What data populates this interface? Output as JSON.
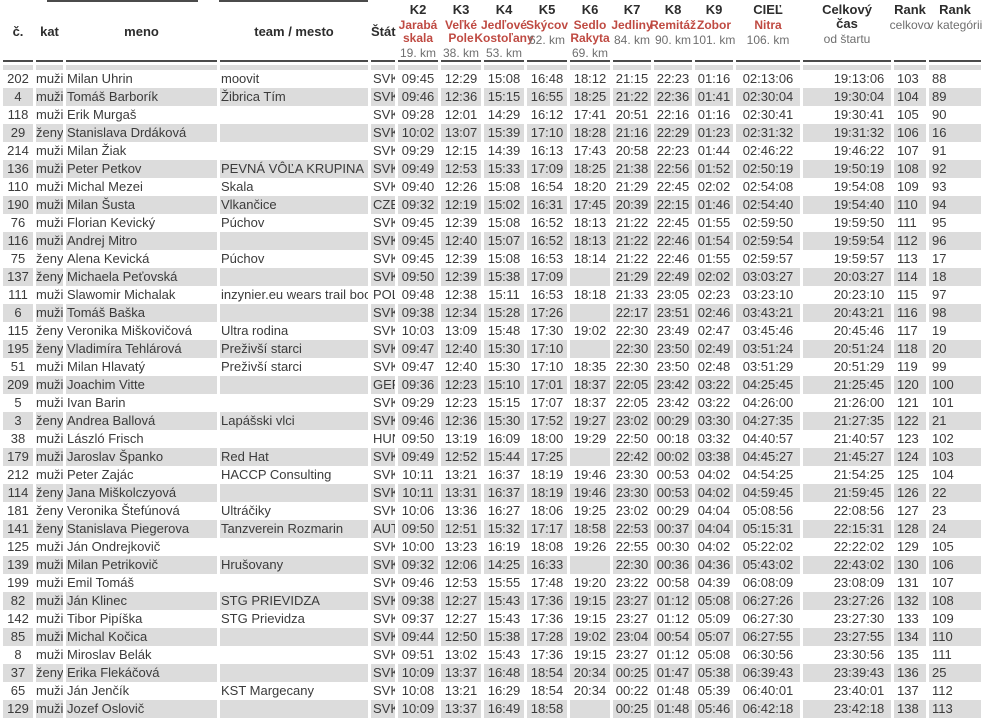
{
  "colors": {
    "checkpoint_name_red": "#bf4a42",
    "muted_gray_text": "#6f6f6f",
    "header_rule": "#4b4b4b",
    "alt_row_bg": "#dcdcdc"
  },
  "table": {
    "columns": [
      {
        "key": "c",
        "label": "č."
      },
      {
        "key": "kat",
        "label": "kat"
      },
      {
        "key": "meno",
        "label": "meno"
      },
      {
        "key": "team",
        "label": "team / mesto"
      },
      {
        "key": "stat",
        "label": "Štát"
      },
      {
        "key": "k2",
        "label": "K2",
        "place": "Jarabá\nskala",
        "km": "19. km"
      },
      {
        "key": "k3",
        "label": "K3",
        "place": "Veľké\nPole",
        "km": "38. km"
      },
      {
        "key": "k4",
        "label": "K4",
        "place": "Jedľové\nKostoľany",
        "km": "53. km"
      },
      {
        "key": "k5",
        "label": "K5",
        "place": "Skýcov",
        "km": "62. km"
      },
      {
        "key": "k6",
        "label": "K6",
        "place": "Sedlo\nRakyta",
        "km": "69. km"
      },
      {
        "key": "k7",
        "label": "K7",
        "place": "Jedliny",
        "km": "84. km"
      },
      {
        "key": "k8",
        "label": "K8",
        "place": "Remitáž",
        "km": "90. km"
      },
      {
        "key": "k9",
        "label": "K9",
        "place": "Zobor",
        "km": "101. km"
      },
      {
        "key": "ciel",
        "label": "CIEĽ",
        "place": "Nitra",
        "km": "106. km"
      },
      {
        "key": "total",
        "label": "Celkový\nčas",
        "sub": "od štartu"
      },
      {
        "key": "rank",
        "label": "Rank",
        "sub": "celkovo"
      },
      {
        "key": "rankkat",
        "label": "Rank",
        "sub": "v kategórii"
      }
    ],
    "rows": [
      [
        "202",
        "muži",
        "Milan Uhrin",
        "moovit",
        "SVK",
        "09:45",
        "12:29",
        "15:08",
        "16:48",
        "18:12",
        "21:15",
        "22:23",
        "01:16",
        "02:13:06",
        "19:13:06",
        "103",
        "88"
      ],
      [
        "4",
        "muži",
        "Tomáš Barborík",
        "Žibrica Tím",
        "SVK",
        "09:46",
        "12:36",
        "15:15",
        "16:55",
        "18:25",
        "21:22",
        "22:36",
        "01:41",
        "02:30:04",
        "19:30:04",
        "104",
        "89"
      ],
      [
        "118",
        "muži",
        "Erik Murgaš",
        "",
        "SVK",
        "09:28",
        "12:01",
        "14:29",
        "16:12",
        "17:41",
        "20:51",
        "22:16",
        "01:16",
        "02:30:41",
        "19:30:41",
        "105",
        "90"
      ],
      [
        "29",
        "ženy",
        "Stanislava Drdáková",
        "",
        "SVK",
        "10:02",
        "13:07",
        "15:39",
        "17:10",
        "18:28",
        "21:16",
        "22:29",
        "01:23",
        "02:31:32",
        "19:31:32",
        "106",
        "16"
      ],
      [
        "214",
        "muži",
        "Milan Žiak",
        "",
        "SVK",
        "09:29",
        "12:15",
        "14:39",
        "16:13",
        "17:43",
        "20:58",
        "22:23",
        "01:44",
        "02:46:22",
        "19:46:22",
        "107",
        "91"
      ],
      [
        "136",
        "muži",
        "Peter Petkov",
        "PEVNÁ VÔĽA KRUPINA",
        "SVK",
        "09:49",
        "12:53",
        "15:33",
        "17:09",
        "18:25",
        "21:38",
        "22:56",
        "01:52",
        "02:50:19",
        "19:50:19",
        "108",
        "92"
      ],
      [
        "110",
        "muži",
        "Michal Mezei",
        "Skala",
        "SVK",
        "09:40",
        "12:26",
        "15:08",
        "16:54",
        "18:20",
        "21:29",
        "22:45",
        "02:02",
        "02:54:08",
        "19:54:08",
        "109",
        "93"
      ],
      [
        "190",
        "muži",
        "Milan Šusta",
        "Vlkančice",
        "CZE",
        "09:32",
        "12:19",
        "15:02",
        "16:31",
        "17:45",
        "20:39",
        "22:15",
        "01:46",
        "02:54:40",
        "19:54:40",
        "110",
        "94"
      ],
      [
        "76",
        "muži",
        "Florian Kevický",
        "Púchov",
        "SVK",
        "09:45",
        "12:39",
        "15:08",
        "16:52",
        "18:13",
        "21:22",
        "22:45",
        "01:55",
        "02:59:50",
        "19:59:50",
        "111",
        "95"
      ],
      [
        "116",
        "muži",
        "Andrej Mitro",
        "",
        "SVK",
        "09:45",
        "12:40",
        "15:07",
        "16:52",
        "18:13",
        "21:22",
        "22:46",
        "01:54",
        "02:59:54",
        "19:59:54",
        "112",
        "96"
      ],
      [
        "75",
        "ženy",
        "Alena Kevická",
        "Púchov",
        "SVK",
        "09:45",
        "12:39",
        "15:08",
        "16:53",
        "18:14",
        "21:22",
        "22:46",
        "01:55",
        "02:59:57",
        "19:59:57",
        "113",
        "17"
      ],
      [
        "137",
        "ženy",
        "Michaela Peťovská",
        "",
        "SVK",
        "09:50",
        "12:39",
        "15:38",
        "17:09",
        "",
        "21:29",
        "22:49",
        "02:02",
        "03:03:27",
        "20:03:27",
        "114",
        "18"
      ],
      [
        "111",
        "muži",
        "Slawomir Michalak",
        "inzynier.eu wears trail boots",
        "POL",
        "09:48",
        "12:38",
        "15:11",
        "16:53",
        "18:18",
        "21:33",
        "23:05",
        "02:23",
        "03:23:10",
        "20:23:10",
        "115",
        "97"
      ],
      [
        "6",
        "muži",
        "Tomáš Baška",
        "",
        "SVK",
        "09:38",
        "12:34",
        "15:28",
        "17:26",
        "",
        "22:17",
        "23:51",
        "02:46",
        "03:43:21",
        "20:43:21",
        "116",
        "98"
      ],
      [
        "115",
        "ženy",
        "Veronika Miškovičová",
        "Ultra rodina",
        "SVK",
        "10:03",
        "13:09",
        "15:48",
        "17:30",
        "19:02",
        "22:30",
        "23:49",
        "02:47",
        "03:45:46",
        "20:45:46",
        "117",
        "19"
      ],
      [
        "195",
        "ženy",
        "Vladimíra Tehlárová",
        "Preživší starci",
        "SVK",
        "09:47",
        "12:40",
        "15:30",
        "17:10",
        "",
        "22:30",
        "23:50",
        "02:49",
        "03:51:24",
        "20:51:24",
        "118",
        "20"
      ],
      [
        "51",
        "muži",
        "Milan Hlavatý",
        "Preživší starci",
        "SVK",
        "09:47",
        "12:40",
        "15:30",
        "17:10",
        "18:35",
        "22:30",
        "23:50",
        "02:48",
        "03:51:29",
        "20:51:29",
        "119",
        "99"
      ],
      [
        "209",
        "muži",
        "Joachim Vitte",
        "",
        "GER",
        "09:36",
        "12:23",
        "15:10",
        "17:01",
        "18:37",
        "22:05",
        "23:42",
        "03:22",
        "04:25:45",
        "21:25:45",
        "120",
        "100"
      ],
      [
        "5",
        "muži",
        "Ivan Barin",
        "",
        "SVK",
        "09:29",
        "12:23",
        "15:15",
        "17:07",
        "18:37",
        "22:05",
        "23:42",
        "03:22",
        "04:26:00",
        "21:26:00",
        "121",
        "101"
      ],
      [
        "3",
        "ženy",
        "Andrea Ballová",
        "Lapášski vlci",
        "SVK",
        "09:46",
        "12:36",
        "15:30",
        "17:52",
        "19:27",
        "23:02",
        "00:29",
        "03:30",
        "04:27:35",
        "21:27:35",
        "122",
        "21"
      ],
      [
        "38",
        "muži",
        "László Frisch",
        "",
        "HUN",
        "09:50",
        "13:19",
        "16:09",
        "18:00",
        "19:29",
        "22:50",
        "00:18",
        "03:32",
        "04:40:57",
        "21:40:57",
        "123",
        "102"
      ],
      [
        "179",
        "muži",
        "Jaroslav Španko",
        "Red Hat",
        "SVK",
        "09:49",
        "12:52",
        "15:44",
        "17:25",
        "",
        "22:42",
        "00:02",
        "03:38",
        "04:45:27",
        "21:45:27",
        "124",
        "103"
      ],
      [
        "212",
        "muži",
        "Peter Zajác",
        "HACCP Consulting",
        "SVK",
        "10:11",
        "13:21",
        "16:37",
        "18:19",
        "19:46",
        "23:30",
        "00:53",
        "04:02",
        "04:54:25",
        "21:54:25",
        "125",
        "104"
      ],
      [
        "114",
        "ženy",
        "Jana Miškolczyová",
        "",
        "SVK",
        "10:11",
        "13:31",
        "16:37",
        "18:19",
        "19:46",
        "23:30",
        "00:53",
        "04:02",
        "04:59:45",
        "21:59:45",
        "126",
        "22"
      ],
      [
        "181",
        "ženy",
        "Veronika Štefúnová",
        "Ultráčiky",
        "SVK",
        "10:06",
        "13:36",
        "16:27",
        "18:06",
        "19:25",
        "23:02",
        "00:29",
        "04:04",
        "05:08:56",
        "22:08:56",
        "127",
        "23"
      ],
      [
        "141",
        "ženy",
        "Stanislava Piegerova",
        "Tanzverein Rozmarin",
        "AUT",
        "09:50",
        "12:51",
        "15:32",
        "17:17",
        "18:58",
        "22:53",
        "00:37",
        "04:04",
        "05:15:31",
        "22:15:31",
        "128",
        "24"
      ],
      [
        "125",
        "muži",
        "Ján Ondrejkovič",
        "",
        "SVK",
        "10:00",
        "13:23",
        "16:19",
        "18:08",
        "19:26",
        "22:55",
        "00:30",
        "04:02",
        "05:22:02",
        "22:22:02",
        "129",
        "105"
      ],
      [
        "139",
        "muži",
        "Milan Petrikovič",
        "Hrušovany",
        "SVK",
        "09:32",
        "12:06",
        "14:25",
        "16:33",
        "",
        "22:30",
        "00:36",
        "04:36",
        "05:43:02",
        "22:43:02",
        "130",
        "106"
      ],
      [
        "199",
        "muži",
        "Emil Tomáš",
        "",
        "SVK",
        "09:46",
        "12:53",
        "15:55",
        "17:48",
        "19:20",
        "23:22",
        "00:58",
        "04:39",
        "06:08:09",
        "23:08:09",
        "131",
        "107"
      ],
      [
        "82",
        "muži",
        "Ján Klinec",
        "STG PRIEVIDZA",
        "SVK",
        "09:38",
        "12:27",
        "15:43",
        "17:36",
        "19:15",
        "23:27",
        "01:12",
        "05:08",
        "06:27:26",
        "23:27:26",
        "132",
        "108"
      ],
      [
        "142",
        "muži",
        "Tibor Pipíška",
        "STG Prievidza",
        "SVK",
        "09:37",
        "12:27",
        "15:43",
        "17:36",
        "19:15",
        "23:27",
        "01:12",
        "05:09",
        "06:27:30",
        "23:27:30",
        "133",
        "109"
      ],
      [
        "85",
        "muži",
        "Michal Kočica",
        "",
        "SVK",
        "09:44",
        "12:50",
        "15:38",
        "17:28",
        "19:02",
        "23:04",
        "00:54",
        "05:07",
        "06:27:55",
        "23:27:55",
        "134",
        "110"
      ],
      [
        "8",
        "muži",
        "Miroslav Belák",
        "",
        "SVK",
        "09:51",
        "13:02",
        "15:43",
        "17:36",
        "19:15",
        "23:27",
        "01:12",
        "05:08",
        "06:30:56",
        "23:30:56",
        "135",
        "111"
      ],
      [
        "37",
        "ženy",
        "Erika Flekáčová",
        "",
        "SVK",
        "10:09",
        "13:37",
        "16:48",
        "18:54",
        "20:34",
        "00:25",
        "01:47",
        "05:38",
        "06:39:43",
        "23:39:43",
        "136",
        "25"
      ],
      [
        "65",
        "muži",
        "Ján Jenčík",
        "KST Margecany",
        "SVK",
        "10:08",
        "13:21",
        "16:29",
        "18:54",
        "20:34",
        "00:22",
        "01:48",
        "05:39",
        "06:40:01",
        "23:40:01",
        "137",
        "112"
      ],
      [
        "129",
        "muži",
        "Jozef Oslovič",
        "",
        "SVK",
        "10:09",
        "13:37",
        "16:49",
        "18:58",
        "",
        "00:25",
        "01:48",
        "05:46",
        "06:42:18",
        "23:42:18",
        "138",
        "113"
      ]
    ]
  }
}
